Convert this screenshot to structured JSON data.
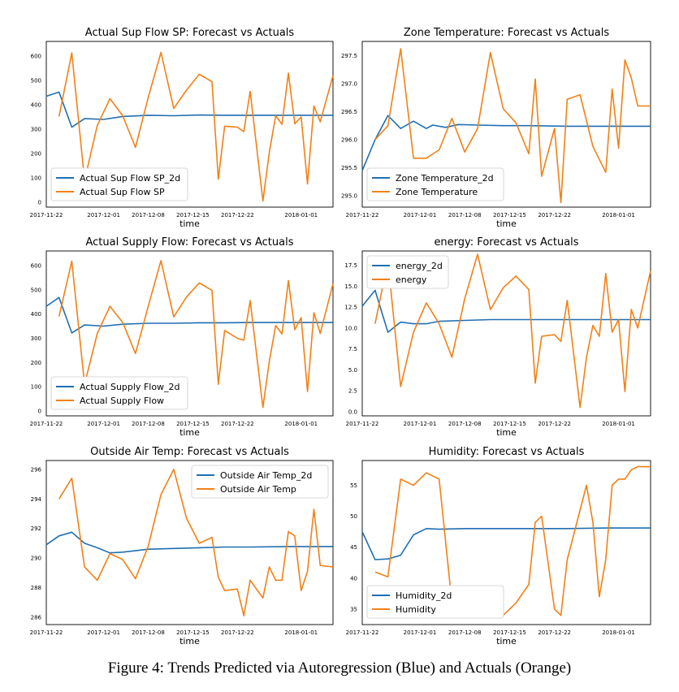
{
  "caption": "Figure 4: Trends Predicted via Autoregression (Blue) and Actuals (Orange)",
  "colors": {
    "forecast": "#1f6fb2",
    "actual": "#f28016"
  },
  "shared_x_ticks": [
    "2017-11-22",
    "2017-12-01",
    "2017-12-08",
    "2017-12-15",
    "2017-12-22",
    "2018-01-01"
  ],
  "chart_data": [
    {
      "type": "line",
      "title": "Actual Sup Flow SP: Forecast vs Actuals",
      "xlabel": "time",
      "x_ticks": [
        "2017-11-22",
        "2017-12-01",
        "2017-12-08",
        "2017-12-15",
        "2017-12-22",
        "2018-01-01"
      ],
      "y_ticks": [
        0,
        100,
        200,
        300,
        400,
        500,
        600
      ],
      "xlim": [
        "2017-11-22",
        "2018-01-06"
      ],
      "ylim": [
        -20,
        660
      ],
      "legend_position": "lower-left",
      "series": [
        {
          "name": "Actual Sup Flow SP_2d",
          "color": "#1f6fb2",
          "x": [
            "2017-11-22",
            "2017-11-24",
            "2017-11-26",
            "2017-11-28",
            "2017-12-01",
            "2017-12-04",
            "2017-12-08",
            "2017-12-12",
            "2017-12-16",
            "2017-12-20",
            "2017-12-24",
            "2017-12-28",
            "2018-01-01",
            "2018-01-06"
          ],
          "y": [
            435,
            452,
            308,
            343,
            340,
            352,
            357,
            355,
            358,
            357,
            357,
            357,
            357,
            357
          ]
        },
        {
          "name": "Actual Sup Flow SP",
          "color": "#f28016",
          "x": [
            "2017-11-24",
            "2017-11-26",
            "2017-11-28",
            "2017-11-30",
            "2017-12-02",
            "2017-12-04",
            "2017-12-06",
            "2017-12-08",
            "2017-12-10",
            "2017-12-12",
            "2017-12-14",
            "2017-12-16",
            "2017-12-18",
            "2017-12-19",
            "2017-12-20",
            "2017-12-22",
            "2017-12-23",
            "2017-12-24",
            "2017-12-26",
            "2017-12-27",
            "2017-12-28",
            "2017-12-29",
            "2017-12-30",
            "2017-12-31",
            "2018-01-01",
            "2018-01-02",
            "2018-01-03",
            "2018-01-04",
            "2018-01-06"
          ],
          "y": [
            352,
            613,
            90,
            315,
            425,
            355,
            225,
            430,
            615,
            385,
            460,
            525,
            495,
            95,
            312,
            308,
            290,
            455,
            5,
            205,
            355,
            320,
            530,
            322,
            350,
            75,
            395,
            330,
            520
          ]
        }
      ]
    },
    {
      "type": "line",
      "title": "Zone Temperature: Forecast vs Actuals",
      "xlabel": "time",
      "x_ticks": [
        "2017-11-22",
        "2017-12-01",
        "2017-12-08",
        "2017-12-15",
        "2017-12-22",
        "2018-01-01"
      ],
      "y_ticks": [
        "295.0",
        "295.5",
        "296.0",
        "296.5",
        "297.0",
        "297.5"
      ],
      "xlim": [
        "2017-11-22",
        "2018-01-06"
      ],
      "ylim": [
        294.8,
        297.75
      ],
      "legend_position": "lower-left",
      "series": [
        {
          "name": "Zone Temperature_2d",
          "color": "#1f6fb2",
          "x": [
            "2017-11-22",
            "2017-11-24",
            "2017-11-26",
            "2017-11-28",
            "2017-11-30",
            "2017-12-02",
            "2017-12-03",
            "2017-12-05",
            "2017-12-07",
            "2017-12-10",
            "2017-12-14",
            "2017-12-18",
            "2017-12-24",
            "2017-12-30",
            "2018-01-06"
          ],
          "y": [
            295.45,
            296.0,
            296.43,
            296.2,
            296.33,
            296.2,
            296.26,
            296.22,
            296.27,
            296.26,
            296.25,
            296.25,
            296.24,
            296.24,
            296.24
          ]
        },
        {
          "name": "Zone Temperature",
          "color": "#f28016",
          "x": [
            "2017-11-24",
            "2017-11-26",
            "2017-11-28",
            "2017-11-30",
            "2017-12-02",
            "2017-12-04",
            "2017-12-06",
            "2017-12-08",
            "2017-12-10",
            "2017-12-12",
            "2017-12-14",
            "2017-12-16",
            "2017-12-18",
            "2017-12-19",
            "2017-12-20",
            "2017-12-22",
            "2017-12-23",
            "2017-12-24",
            "2017-12-26",
            "2017-12-28",
            "2017-12-30",
            "2017-12-31",
            "2018-01-01",
            "2018-01-02",
            "2018-01-03",
            "2018-01-04",
            "2018-01-06"
          ],
          "y": [
            296.0,
            296.25,
            297.62,
            295.67,
            295.67,
            295.82,
            296.38,
            295.78,
            296.2,
            297.55,
            296.55,
            296.3,
            295.75,
            297.08,
            295.35,
            296.2,
            294.88,
            296.72,
            296.8,
            295.88,
            295.42,
            296.9,
            295.85,
            297.42,
            297.1,
            296.6,
            296.6
          ]
        }
      ]
    },
    {
      "type": "line",
      "title": "Actual Supply Flow: Forecast vs Actuals",
      "xlabel": "time",
      "x_ticks": [
        "2017-11-22",
        "2017-12-01",
        "2017-12-08",
        "2017-12-15",
        "2017-12-22",
        "2018-01-01"
      ],
      "y_ticks": [
        0,
        100,
        200,
        300,
        400,
        500,
        600
      ],
      "xlim": [
        "2017-11-22",
        "2018-01-06"
      ],
      "ylim": [
        -20,
        660
      ],
      "legend_position": "lower-left",
      "series": [
        {
          "name": "Actual Supply Flow_2d",
          "color": "#1f6fb2",
          "x": [
            "2017-11-22",
            "2017-11-24",
            "2017-11-26",
            "2017-11-28",
            "2017-12-01",
            "2017-12-04",
            "2017-12-08",
            "2017-12-12",
            "2017-12-16",
            "2017-12-20",
            "2017-12-24",
            "2017-12-28",
            "2018-01-01",
            "2018-01-06"
          ],
          "y": [
            432,
            468,
            322,
            355,
            350,
            358,
            362,
            362,
            364,
            364,
            365,
            365,
            365,
            365
          ]
        },
        {
          "name": "Actual Supply Flow",
          "color": "#f28016",
          "x": [
            "2017-11-24",
            "2017-11-26",
            "2017-11-28",
            "2017-11-30",
            "2017-12-02",
            "2017-12-04",
            "2017-12-06",
            "2017-12-08",
            "2017-12-10",
            "2017-12-12",
            "2017-12-14",
            "2017-12-16",
            "2017-12-18",
            "2017-12-19",
            "2017-12-20",
            "2017-12-22",
            "2017-12-23",
            "2017-12-24",
            "2017-12-26",
            "2017-12-27",
            "2017-12-28",
            "2017-12-29",
            "2017-12-30",
            "2017-12-31",
            "2018-01-01",
            "2018-01-02",
            "2018-01-03",
            "2018-01-04",
            "2018-01-06"
          ],
          "y": [
            390,
            618,
            110,
            320,
            432,
            365,
            237,
            432,
            620,
            388,
            470,
            528,
            498,
            110,
            332,
            300,
            292,
            455,
            15,
            205,
            352,
            318,
            538,
            335,
            385,
            80,
            405,
            320,
            525
          ]
        }
      ]
    },
    {
      "type": "line",
      "title": "energy: Forecast vs Actuals",
      "xlabel": "time",
      "x_ticks": [
        "2017-11-22",
        "2017-12-01",
        "2017-12-08",
        "2017-12-15",
        "2017-12-22",
        "2018-01-01"
      ],
      "y_ticks": [
        "0.0",
        "2.5",
        "5.0",
        "7.5",
        "10.0",
        "12.5",
        "15.0",
        "17.5"
      ],
      "xlim": [
        "2017-11-22",
        "2018-01-06"
      ],
      "ylim": [
        -0.5,
        19.2
      ],
      "legend_position": "upper-left",
      "series": [
        {
          "name": "energy_2d",
          "color": "#1f6fb2",
          "x": [
            "2017-11-22",
            "2017-11-24",
            "2017-11-26",
            "2017-11-28",
            "2017-11-30",
            "2017-12-02",
            "2017-12-04",
            "2017-12-08",
            "2017-12-12",
            "2017-12-16",
            "2017-12-20",
            "2017-12-24",
            "2017-12-30",
            "2018-01-06"
          ],
          "y": [
            12.6,
            14.5,
            9.5,
            10.7,
            10.5,
            10.5,
            10.8,
            10.9,
            11.0,
            11.0,
            11.0,
            11.0,
            11.0,
            11.0
          ]
        },
        {
          "name": "energy",
          "color": "#f28016",
          "x": [
            "2017-11-24",
            "2017-11-26",
            "2017-11-28",
            "2017-11-30",
            "2017-12-02",
            "2017-12-04",
            "2017-12-06",
            "2017-12-08",
            "2017-12-10",
            "2017-12-12",
            "2017-12-14",
            "2017-12-16",
            "2017-12-18",
            "2017-12-19",
            "2017-12-20",
            "2017-12-22",
            "2017-12-23",
            "2017-12-24",
            "2017-12-26",
            "2017-12-27",
            "2017-12-28",
            "2017-12-29",
            "2017-12-30",
            "2017-12-31",
            "2018-01-01",
            "2018-01-02",
            "2018-01-03",
            "2018-01-04",
            "2018-01-06"
          ],
          "y": [
            10.5,
            18.0,
            3.0,
            9.5,
            13.0,
            10.5,
            6.5,
            13.5,
            18.8,
            12.2,
            14.8,
            16.2,
            14.6,
            3.4,
            9.0,
            9.2,
            8.4,
            13.3,
            0.5,
            6.5,
            10.3,
            9.0,
            16.5,
            9.5,
            11.0,
            2.4,
            12.2,
            10.0,
            16.8
          ]
        }
      ]
    },
    {
      "type": "line",
      "title": "Outside Air Temp: Forecast vs Actuals",
      "xlabel": "time",
      "x_ticks": [
        "2017-11-22",
        "2017-12-01",
        "2017-12-08",
        "2017-12-15",
        "2017-12-22",
        "2018-01-01"
      ],
      "y_ticks": [
        286,
        288,
        290,
        292,
        294,
        296
      ],
      "xlim": [
        "2017-11-22",
        "2018-01-06"
      ],
      "ylim": [
        285.5,
        296.6
      ],
      "legend_position": "upper-right",
      "series": [
        {
          "name": "Outside Air Temp_2d",
          "color": "#1f6fb2",
          "x": [
            "2017-11-22",
            "2017-11-24",
            "2017-11-26",
            "2017-11-28",
            "2017-11-30",
            "2017-12-02",
            "2017-12-04",
            "2017-12-08",
            "2017-12-12",
            "2017-12-16",
            "2017-12-20",
            "2017-12-24",
            "2017-12-30",
            "2018-01-06"
          ],
          "y": [
            290.9,
            291.5,
            291.75,
            291.0,
            290.7,
            290.35,
            290.4,
            290.6,
            290.65,
            290.7,
            290.75,
            290.75,
            290.78,
            290.78
          ]
        },
        {
          "name": "Outside Air Temp",
          "color": "#f28016",
          "x": [
            "2017-11-24",
            "2017-11-26",
            "2017-11-28",
            "2017-11-30",
            "2017-12-02",
            "2017-12-04",
            "2017-12-06",
            "2017-12-08",
            "2017-12-10",
            "2017-12-12",
            "2017-12-14",
            "2017-12-16",
            "2017-12-18",
            "2017-12-19",
            "2017-12-20",
            "2017-12-22",
            "2017-12-23",
            "2017-12-24",
            "2017-12-26",
            "2017-12-27",
            "2017-12-28",
            "2017-12-29",
            "2017-12-30",
            "2017-12-31",
            "2018-01-01",
            "2018-01-02",
            "2018-01-03",
            "2018-01-04",
            "2018-01-06"
          ],
          "y": [
            294.0,
            295.4,
            289.4,
            288.5,
            290.3,
            289.9,
            288.6,
            290.8,
            294.3,
            296.0,
            292.7,
            291.0,
            291.4,
            288.7,
            287.8,
            287.9,
            286.1,
            288.5,
            287.3,
            289.4,
            288.5,
            288.5,
            291.8,
            291.5,
            287.8,
            289.1,
            293.3,
            289.5,
            289.4
          ]
        }
      ]
    },
    {
      "type": "line",
      "title": "Humidity: Forecast vs Actuals",
      "xlabel": "time",
      "x_ticks": [
        "2017-11-22",
        "2017-12-01",
        "2017-12-08",
        "2017-12-15",
        "2017-12-22",
        "2018-01-01"
      ],
      "y_ticks": [
        35,
        40,
        45,
        50,
        55
      ],
      "xlim": [
        "2017-11-22",
        "2018-01-06"
      ],
      "ylim": [
        32.5,
        59.0
      ],
      "legend_position": "lower-left",
      "series": [
        {
          "name": "Humidity_2d",
          "color": "#1f6fb2",
          "x": [
            "2017-11-22",
            "2017-11-24",
            "2017-11-26",
            "2017-11-28",
            "2017-11-30",
            "2017-12-02",
            "2017-12-04",
            "2017-12-08",
            "2017-12-12",
            "2017-12-16",
            "2017-12-20",
            "2017-12-24",
            "2017-12-30",
            "2018-01-06"
          ],
          "y": [
            47.5,
            43.0,
            43.1,
            43.7,
            47.0,
            48.0,
            47.9,
            48.0,
            48.0,
            48.0,
            48.0,
            48.0,
            48.1,
            48.1
          ]
        },
        {
          "name": "Humidity",
          "color": "#f28016",
          "x": [
            "2017-11-24",
            "2017-11-26",
            "2017-11-28",
            "2017-11-30",
            "2017-12-02",
            "2017-12-04",
            "2017-12-06",
            "2017-12-08",
            "2017-12-10",
            "2017-12-12",
            "2017-12-14",
            "2017-12-16",
            "2017-12-18",
            "2017-12-19",
            "2017-12-20",
            "2017-12-22",
            "2017-12-23",
            "2017-12-24",
            "2017-12-26",
            "2017-12-27",
            "2017-12-28",
            "2017-12-29",
            "2017-12-30",
            "2017-12-31",
            "2018-01-01",
            "2018-01-02",
            "2018-01-03",
            "2018-01-04",
            "2018-01-06"
          ],
          "y": [
            41.0,
            40.2,
            56.0,
            55.0,
            57.0,
            56.0,
            36.0,
            35.0,
            34.0,
            34.0,
            34.0,
            36.0,
            39.0,
            49.0,
            50.0,
            35.0,
            34.0,
            43.0,
            51.0,
            55.0,
            49.0,
            37.0,
            43.0,
            55.0,
            56.0,
            56.0,
            57.5,
            58.0,
            58.0
          ]
        }
      ]
    }
  ]
}
